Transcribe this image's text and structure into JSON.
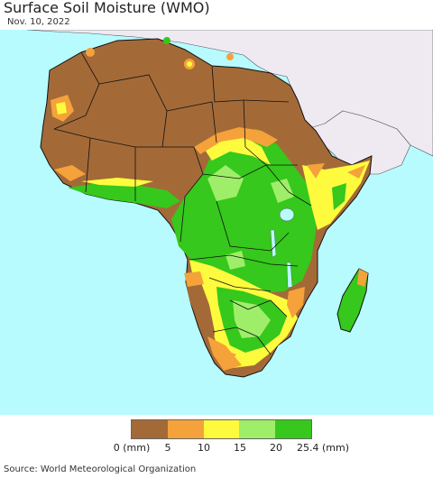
{
  "title": "Surface Soil Moisture (WMO)",
  "date": "Nov. 10, 2022",
  "legend": {
    "colors": [
      "#a36a38",
      "#f5a23a",
      "#fefb3e",
      "#9fee6a",
      "#36c81c"
    ],
    "ticks": [
      "0 (mm)",
      "5",
      "10",
      "15",
      "20",
      "25.4 (mm)"
    ]
  },
  "source": "Source: World Meteorological Organization",
  "colors": {
    "ocean": "#b8fbff",
    "no_data_land": "#efeaf2",
    "dry": "#a36a38",
    "low": "#f5a23a",
    "mid": "#fefb3e",
    "high": "#9fee6a",
    "wet": "#36c81c",
    "border": "#111111"
  }
}
